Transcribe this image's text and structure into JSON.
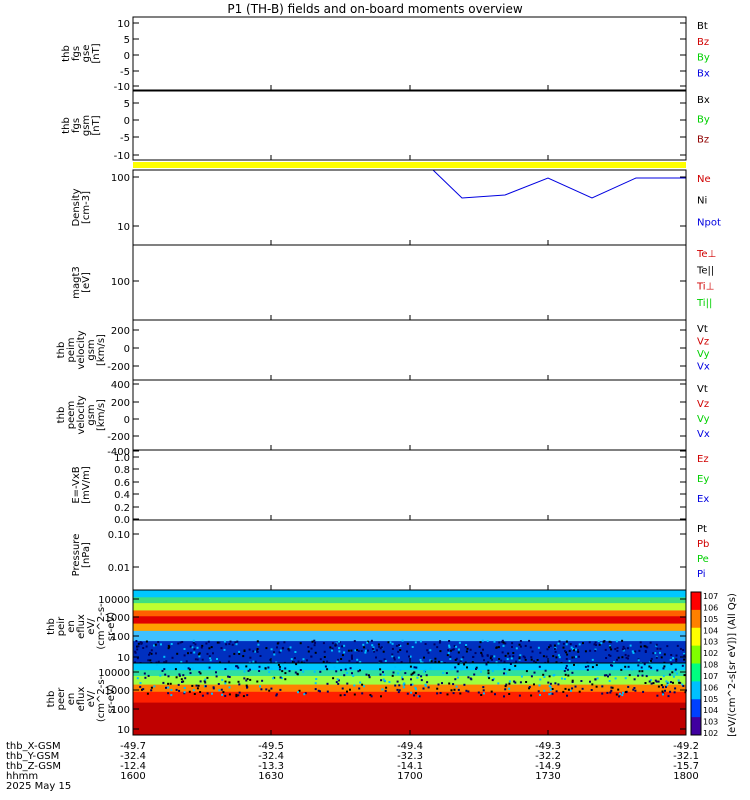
{
  "title": "P1 (TH-B) fields and on-board moments overview",
  "colors": {
    "black": "#000000",
    "red": "#d00000",
    "green": "#00d000",
    "blue": "#0000e0",
    "darkred": "#900000",
    "yellow": "#ffff00"
  },
  "panels": [
    {
      "id": "fgs-gse",
      "ylabel": [
        "thb",
        "fgs",
        "gse",
        "[nT]"
      ],
      "yticks": [
        "10",
        "5",
        "0",
        "-5",
        "-10"
      ],
      "legend": [
        {
          "text": "Bt",
          "color": "#000000"
        },
        {
          "text": "Bz",
          "color": "#d00000"
        },
        {
          "text": "By",
          "color": "#00d000"
        },
        {
          "text": "Bx",
          "color": "#0000e0"
        }
      ]
    },
    {
      "id": "fgs-gsm",
      "ylabel": [
        "thb",
        "fgs",
        "gsm",
        "[nT]"
      ],
      "yticks": [
        "5",
        "0",
        "-5",
        "-10"
      ],
      "legend": [
        {
          "text": "Bx",
          "color": "#000000"
        },
        {
          "text": "By",
          "color": "#00d000"
        },
        {
          "text": "Bz",
          "color": "#900000"
        }
      ]
    },
    {
      "id": "density",
      "ylabel": [
        "Density",
        "[cm-3]"
      ],
      "yticks": [
        "100",
        "10"
      ],
      "legend": [
        {
          "text": "Ne",
          "color": "#d00000"
        },
        {
          "text": "Ni",
          "color": "#000000"
        },
        {
          "text": "Npot",
          "color": "#0000e0"
        }
      ]
    },
    {
      "id": "temp",
      "ylabel": [
        "magt3",
        "[eV]"
      ],
      "yticks": [
        "100"
      ],
      "legend": [
        {
          "text": "Te⊥",
          "color": "#d00000"
        },
        {
          "text": "Te||",
          "color": "#000000"
        },
        {
          "text": "Ti⊥",
          "color": "#d00000"
        },
        {
          "text": "Ti||",
          "color": "#00d000"
        }
      ]
    },
    {
      "id": "peim",
      "ylabel": [
        "thb",
        "peim",
        "velocity",
        "gsm",
        "[km/s]"
      ],
      "yticks": [
        "200",
        "0",
        "-200"
      ],
      "legend": [
        {
          "text": "Vt",
          "color": "#000000"
        },
        {
          "text": "Vz",
          "color": "#d00000"
        },
        {
          "text": "Vy",
          "color": "#00d000"
        },
        {
          "text": "Vx",
          "color": "#0000e0"
        }
      ]
    },
    {
      "id": "peem",
      "ylabel": [
        "thb",
        "peem",
        "velocity",
        "gsm",
        "[km/s]"
      ],
      "yticks": [
        "400",
        "200",
        "0",
        "-200",
        "-400"
      ],
      "legend": [
        {
          "text": "Vt",
          "color": "#000000"
        },
        {
          "text": "Vz",
          "color": "#d00000"
        },
        {
          "text": "Vy",
          "color": "#00d000"
        },
        {
          "text": "Vx",
          "color": "#0000e0"
        }
      ]
    },
    {
      "id": "efield",
      "ylabel": [
        "E=-VxB",
        "[mV/m]"
      ],
      "yticks": [
        "1.0",
        "0.8",
        "0.6",
        "0.4",
        "0.2",
        "0.0"
      ],
      "legend": [
        {
          "text": "Ez",
          "color": "#d00000"
        },
        {
          "text": "Ey",
          "color": "#00d000"
        },
        {
          "text": "Ex",
          "color": "#0000e0"
        }
      ]
    },
    {
      "id": "pressure",
      "ylabel": [
        "Pressure",
        "[nPa]"
      ],
      "yticks": [
        "0.10",
        "0.01"
      ],
      "legend": [
        {
          "text": "Pt",
          "color": "#000000"
        },
        {
          "text": "Pb",
          "color": "#d00000"
        },
        {
          "text": "Pe",
          "color": "#00d000"
        },
        {
          "text": "Pi",
          "color": "#0000e0"
        }
      ]
    },
    {
      "id": "peir",
      "ylabel": [
        "thb",
        "peir",
        "en",
        "eflux",
        "eV/",
        "(cm^2-s-",
        "sr-eV)"
      ],
      "yticks": [
        "10000",
        "1000",
        "100",
        "10"
      ],
      "legend": []
    },
    {
      "id": "peer",
      "ylabel": [
        "thb",
        "peer",
        "en",
        "eflux",
        "eV/",
        "(cm^2-s-",
        "sr-eV)"
      ],
      "yticks": [
        "10000",
        "1000",
        "100",
        "10"
      ],
      "legend": []
    }
  ],
  "colorbar": {
    "ticks": [
      "10^7",
      "10^6",
      "10^5",
      "10^4",
      "10^3",
      "10^2",
      "10^8",
      "10^7",
      "10^6",
      "10^5",
      "10^4",
      "10^3",
      "10^2"
    ],
    "label": "[eV/(cm^2-s[sr eV])] (All Qs)"
  },
  "xaxis": {
    "rows": [
      {
        "label": "thb_X-GSM",
        "values": [
          "-49.7",
          "-49.5",
          "-49.4",
          "-49.3",
          "-49.2"
        ]
      },
      {
        "label": "thb_Y-GSM",
        "values": [
          "-32.4",
          "-32.4",
          "-32.3",
          "-32.2",
          "-32.1"
        ]
      },
      {
        "label": "thb_Z-GSM",
        "values": [
          "-12.4",
          "-13.3",
          "-14.1",
          "-14.9",
          "-15.7"
        ]
      },
      {
        "label": "hhmm",
        "values": [
          "1600",
          "1630",
          "1700",
          "1730",
          "1800"
        ]
      }
    ],
    "date": "2025 May 15"
  }
}
